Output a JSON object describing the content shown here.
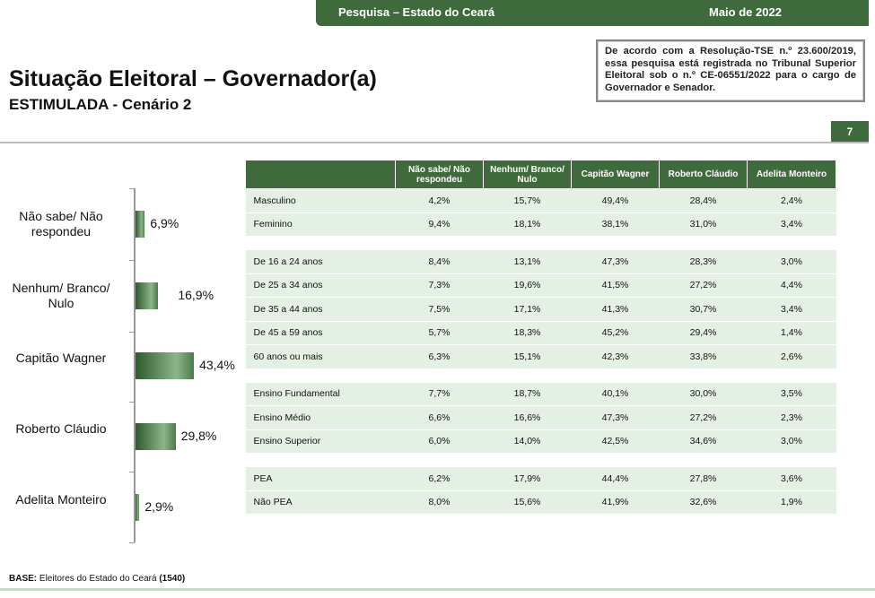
{
  "header": {
    "survey": "Pesquisa – Estado do Ceará",
    "date": "Maio de 2022"
  },
  "title": "Situação Eleitoral – Governador(a)",
  "subtitle": "ESTIMULADA - Cenário 2",
  "notice": {
    "prefix": "De acordo com a Resolução-TSE n.º 23.600/2019, essa pesquisa está registrada no Tribunal Superior Eleitoral sob o n.º ",
    "code": "CE-06551/2022",
    "suffix": " para o cargo de Governador e Senador."
  },
  "page_number": "7",
  "chart_data": {
    "type": "bar",
    "orientation": "horizontal",
    "categories": [
      "Não sabe/ Não respondeu",
      "Nenhum/ Branco/ Nulo",
      "Capitão Wagner",
      "Roberto Cláudio",
      "Adelita Monteiro"
    ],
    "values": [
      6.9,
      16.9,
      43.4,
      29.8,
      2.9
    ],
    "labels": [
      "6,9%",
      "16,9%",
      "43,4%",
      "29,8%",
      "2,9%"
    ],
    "unit": "%"
  },
  "table": {
    "columns": [
      "Não sabe/ Não respondeu",
      "Nenhum/ Branco/ Nulo",
      "Capitão Wagner",
      "Roberto Cláudio",
      "Adelita Monteiro"
    ],
    "groups": [
      [
        [
          "Masculino",
          "4,2%",
          "15,7%",
          "49,4%",
          "28,4%",
          "2,4%"
        ],
        [
          "Feminino",
          "9,4%",
          "18,1%",
          "38,1%",
          "31,0%",
          "3,4%"
        ]
      ],
      [
        [
          "De 16 a 24 anos",
          "8,4%",
          "13,1%",
          "47,3%",
          "28,3%",
          "3,0%"
        ],
        [
          "De 25 a 34 anos",
          "7,3%",
          "19,6%",
          "41,5%",
          "27,2%",
          "4,4%"
        ],
        [
          "De 35 a 44 anos",
          "7,5%",
          "17,1%",
          "41,3%",
          "30,7%",
          "3,4%"
        ],
        [
          "De 45 a 59 anos",
          "5,7%",
          "18,3%",
          "45,2%",
          "29,4%",
          "1,4%"
        ],
        [
          "60 anos ou mais",
          "6,3%",
          "15,1%",
          "42,3%",
          "33,8%",
          "2,6%"
        ]
      ],
      [
        [
          "Ensino Fundamental",
          "7,7%",
          "18,7%",
          "40,1%",
          "30,0%",
          "3,5%"
        ],
        [
          "Ensino Médio",
          "6,6%",
          "16,6%",
          "47,3%",
          "27,2%",
          "2,3%"
        ],
        [
          "Ensino Superior",
          "6,0%",
          "14,0%",
          "42,5%",
          "34,6%",
          "3,0%"
        ]
      ],
      [
        [
          "PEA",
          "6,2%",
          "17,9%",
          "44,4%",
          "27,8%",
          "3,6%"
        ],
        [
          "Não PEA",
          "8,0%",
          "15,6%",
          "41,9%",
          "32,6%",
          "1,9%"
        ]
      ]
    ]
  },
  "footer": {
    "label": "BASE:",
    "text": " Eleitores do Estado do Ceará ",
    "count": "(1540)"
  },
  "colors": {
    "brand": "#3f6a3c",
    "row": "#e4f0e4"
  }
}
